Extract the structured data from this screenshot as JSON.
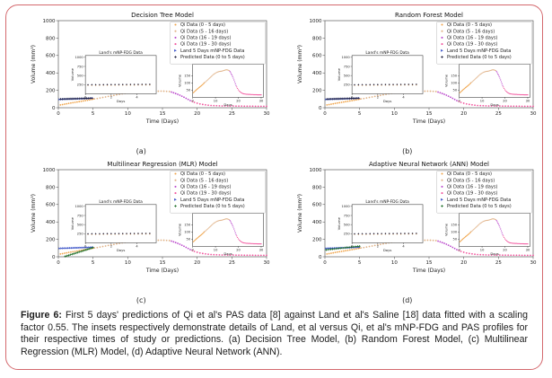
{
  "page": {
    "border_color": "#d4696e",
    "background": "#ffffff"
  },
  "caption": {
    "label": "Figure 6:",
    "text": " First 5 days' predictions of Qi et al's PAS data [8] against Land et al's Saline [18] data fitted with a scaling factor 0.55. The insets respectively demonstrate details of Land, et al versus Qi, et al's mNP-FDG and PAS profiles for their respective times of study or predictions. (a) Decision Tree Model, (b) Random Forest Model, (c) Multilinear Regression (MLR) Model, (d) Adaptive Neural Network (ANN)."
  },
  "chart_data": {
    "type": "scatter",
    "legend": [
      {
        "label": "Qi Data (0 - 5 days)",
        "color": "#f0a44a",
        "marker": "dot"
      },
      {
        "label": "Qi Data (5 - 16 days)",
        "color": "#e0b185",
        "marker": "dot"
      },
      {
        "label": "Qi Data (16 - 19 days)",
        "color": "#bb4acc",
        "marker": "dot"
      },
      {
        "label": "Qi Data (19 - 30 days)",
        "color": "#f2579f",
        "marker": "dot"
      },
      {
        "label": "Land 5 Days mNP-FDG Data",
        "color": "#3d55c8",
        "marker": "tri"
      },
      {
        "label": "Predicted Data (0 to 5 days)",
        "color": "#1c1c3a",
        "marker": "plus"
      }
    ],
    "series_bank": {
      "qi_0_5": {
        "color": "#f0a44a",
        "marker": "dot",
        "x": [
          0.3,
          0.6,
          0.9,
          1.2,
          1.5,
          1.8,
          2.1,
          2.4,
          2.7,
          3,
          3.3,
          3.6,
          3.9,
          4.2,
          4.5,
          4.8,
          5
        ],
        "y": [
          32,
          36,
          41,
          45,
          50,
          54,
          58,
          62,
          66,
          70,
          74,
          78,
          82,
          86,
          90,
          95,
          99
        ]
      },
      "qi_5_16": {
        "color": "#e0b185",
        "marker": "dot",
        "x": [
          5.2,
          5.6,
          6,
          6.4,
          6.8,
          7.2,
          7.6,
          8,
          8.4,
          8.8,
          9.2,
          9.6,
          10,
          10.4,
          10.8,
          11.2,
          11.6,
          12,
          12.4,
          12.8,
          13.2,
          13.6,
          14,
          14.4,
          14.8,
          15.2,
          15.6,
          16
        ],
        "y": [
          102,
          106,
          112,
          118,
          124,
          130,
          136,
          142,
          148,
          154,
          160,
          164,
          168,
          172,
          175,
          177,
          179,
          180,
          181,
          182,
          184,
          186,
          188,
          190,
          191,
          190,
          188,
          186
        ]
      },
      "qi_16_19": {
        "color": "#bb4acc",
        "marker": "dot",
        "x": [
          16.3,
          16.6,
          16.9,
          17.2,
          17.5,
          17.8,
          18.1,
          18.4,
          18.7,
          19
        ],
        "y": [
          180,
          172,
          163,
          154,
          144,
          133,
          121,
          108,
          95,
          82
        ]
      },
      "qi_19_30": {
        "color": "#f2579f",
        "marker": "dot",
        "x": [
          19.3,
          19.6,
          20,
          20.4,
          20.8,
          21.2,
          21.6,
          22,
          22.4,
          22.8,
          23.2,
          23.6,
          24,
          24.4,
          24.8,
          25.2,
          25.6,
          26,
          26.4,
          26.8,
          27.2,
          27.6,
          28,
          28.4,
          28.8,
          29.2,
          29.6,
          30
        ],
        "y": [
          72,
          62,
          52,
          44,
          38,
          33,
          29,
          26,
          24,
          23,
          22,
          21,
          21,
          20,
          20,
          20,
          19,
          19,
          19,
          18,
          18,
          18,
          18,
          17,
          17,
          17,
          17,
          17
        ]
      },
      "land": {
        "color": "#3d55c8",
        "marker": "tri",
        "x": [
          0.2,
          0.45,
          0.7,
          0.95,
          1.2,
          1.45,
          1.7,
          1.95,
          2.2,
          2.45,
          2.7,
          2.95,
          3.2,
          3.45,
          3.7,
          3.95,
          4.2,
          4.45,
          4.7,
          4.95
        ],
        "y": [
          96,
          97,
          98,
          99,
          99,
          100,
          101,
          101,
          102,
          103,
          103,
          104,
          105,
          105,
          106,
          107,
          107,
          108,
          109,
          110
        ]
      },
      "pred_flat": {
        "color": "#1c1c3a",
        "marker": "plus",
        "x": [
          0.3,
          0.55,
          0.8,
          1.05,
          1.3,
          1.55,
          1.8,
          2.05,
          2.3,
          2.55,
          2.8,
          3.05,
          3.3,
          3.55,
          3.8,
          4.05,
          4.3,
          4.55,
          4.8
        ],
        "y": [
          100,
          100,
          101,
          101,
          102,
          102,
          103,
          103,
          104,
          104,
          105,
          105,
          106,
          106,
          107,
          108,
          108,
          109,
          110
        ]
      },
      "pred_mlr": {
        "color": "#15691f",
        "marker": "plus",
        "x": [
          1,
          1.25,
          1.5,
          1.75,
          2,
          2.25,
          2.5,
          2.75,
          3,
          3.25,
          3.5,
          3.75,
          4,
          4.25,
          4.5,
          4.75,
          5
        ],
        "y": [
          5,
          11,
          17,
          24,
          30,
          36,
          42,
          49,
          55,
          61,
          67,
          74,
          80,
          86,
          92,
          99,
          105
        ]
      },
      "pred_ann": {
        "color": "#15691f",
        "marker": "plus",
        "x": [
          0.2,
          0.5,
          0.8,
          1.1,
          1.4,
          1.7,
          2,
          2.3,
          2.6,
          2.9,
          3.2,
          3.5,
          3.8,
          4.1,
          4.4,
          4.7,
          5
        ],
        "y": [
          80,
          83,
          85,
          88,
          91,
          93,
          96,
          99,
          101,
          104,
          107,
          109,
          112,
          115,
          117,
          120,
          122
        ]
      },
      "land_in_pred": {
        "color": "#1c1c3a",
        "marker": "plus",
        "x": [
          0.2,
          0.5,
          0.8,
          1.1,
          1.4,
          1.7,
          2,
          2.3,
          2.6,
          2.9,
          3.2,
          3.5,
          3.8,
          4.1,
          4.4,
          4.7,
          5
        ],
        "y": [
          248,
          249,
          250,
          250,
          251,
          252,
          252,
          253,
          254,
          254,
          255,
          256,
          256,
          257,
          258,
          258,
          259
        ]
      },
      "land_in_qi": {
        "color": "#f0a44a",
        "marker": "dot",
        "x": [
          0.2,
          0.5,
          0.8,
          1.1,
          1.4,
          1.7,
          2,
          2.3,
          2.6,
          2.9,
          3.2,
          3.5,
          3.8,
          4.1,
          4.4,
          4.7,
          5
        ],
        "y": [
          232,
          233,
          234,
          234,
          235,
          236,
          236,
          237,
          238,
          238,
          239,
          240,
          240,
          241,
          242,
          242,
          243
        ]
      }
    },
    "insets": {
      "land_inset": {
        "title": "Land's mNP-FDG Data",
        "xlabel": "Days",
        "ylabel": "Volume",
        "xlim": [
          0,
          5.5
        ],
        "ylim": [
          0,
          1050
        ],
        "xticks": [
          0,
          2,
          4
        ],
        "yticks": [
          250,
          500,
          750,
          1000
        ],
        "pos": [
          0.13,
          0.4,
          0.34,
          0.44
        ],
        "series": [
          "land_in_qi",
          "land_in_pred"
        ]
      },
      "qi_pas_inset": {
        "title": "Qi PAS Data",
        "xlabel": "Days",
        "ylabel": "Volume",
        "xlim": [
          0,
          31
        ],
        "ylim": [
          0,
          230
        ],
        "xticks": [
          0,
          10,
          20,
          30
        ],
        "yticks": [
          50,
          100,
          150
        ],
        "pos": [
          0.645,
          0.5,
          0.34,
          0.38
        ],
        "series": [
          "qi_0_5",
          "qi_5_16",
          "qi_16_19",
          "qi_19_30"
        ]
      }
    },
    "charts": [
      {
        "id": "a",
        "caption_label": "(a)",
        "title": "Decision Tree Model",
        "xlabel": "Time (Days)",
        "ylabel": "Volume (mm³)",
        "xlim": [
          0,
          30
        ],
        "ylim": [
          0,
          1000
        ],
        "xticks": [
          0,
          5,
          10,
          15,
          20,
          25,
          30
        ],
        "yticks": [
          0,
          200,
          400,
          600,
          800,
          1000
        ],
        "series": [
          "qi_0_5",
          "qi_5_16",
          "qi_16_19",
          "qi_19_30",
          "land",
          "pred_flat"
        ],
        "insets": [
          "land_inset",
          "qi_pas_inset"
        ]
      },
      {
        "id": "b",
        "caption_label": "(b)",
        "title": "Random Forest Model",
        "xlabel": "Time (Days)",
        "ylabel": "Volume (mm³)",
        "xlim": [
          0,
          30
        ],
        "ylim": [
          0,
          1000
        ],
        "xticks": [
          0,
          5,
          10,
          15,
          20,
          25,
          30
        ],
        "yticks": [
          0,
          200,
          400,
          600,
          800,
          1000
        ],
        "series": [
          "qi_0_5",
          "qi_5_16",
          "qi_16_19",
          "qi_19_30",
          "land",
          "pred_flat"
        ],
        "insets": [
          "land_inset",
          "qi_pas_inset"
        ]
      },
      {
        "id": "c",
        "caption_label": "(c)",
        "title": "Multilinear Regression (MLR) Model",
        "xlabel": "Time (Days)",
        "ylabel": "Volume (mm³)",
        "xlim": [
          0,
          30
        ],
        "ylim": [
          0,
          1000
        ],
        "xticks": [
          0,
          5,
          10,
          15,
          20,
          25,
          30
        ],
        "yticks": [
          0,
          200,
          400,
          600,
          800,
          1000
        ],
        "series": [
          "qi_0_5",
          "qi_5_16",
          "qi_16_19",
          "qi_19_30",
          "land",
          "pred_mlr"
        ],
        "insets": [
          "land_inset",
          "qi_pas_inset"
        ]
      },
      {
        "id": "d",
        "caption_label": "(d)",
        "title": "Adaptive Neural Network (ANN) Model",
        "xlabel": "Time (Days)",
        "ylabel": "Volume (mm³)",
        "xlim": [
          0,
          30
        ],
        "ylim": [
          0,
          1000
        ],
        "xticks": [
          0,
          5,
          10,
          15,
          20,
          25,
          30
        ],
        "yticks": [
          0,
          200,
          400,
          600,
          800,
          1000
        ],
        "series": [
          "qi_0_5",
          "qi_5_16",
          "qi_16_19",
          "qi_19_30",
          "land",
          "pred_ann"
        ],
        "insets": [
          "land_inset",
          "qi_pas_inset"
        ]
      }
    ]
  }
}
